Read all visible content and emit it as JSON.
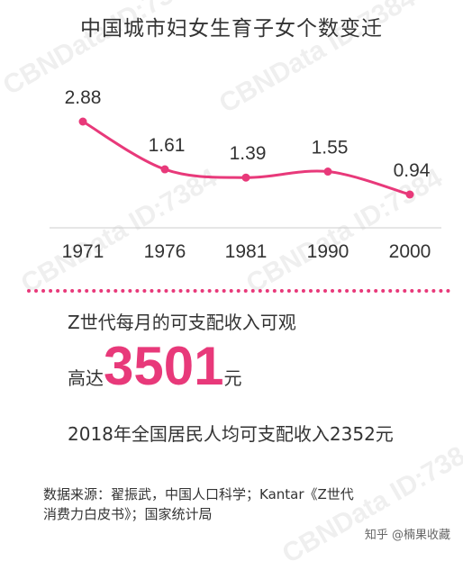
{
  "title": "中国城市妇女生育子女个数变迁",
  "chart_data": {
    "type": "line",
    "title": "中国城市妇女生育子女个数变迁",
    "categories": [
      "1971",
      "1976",
      "1981",
      "1990",
      "2000"
    ],
    "values": [
      2.88,
      1.61,
      1.39,
      1.55,
      0.94
    ],
    "value_labels": [
      "2.88",
      "1.61",
      "1.39",
      "1.55",
      "0.94"
    ],
    "color": "#e8397a",
    "grid": false
  },
  "stats": {
    "line1": "Z世代每月的可支配收入可观",
    "prefix": "高达",
    "big_number": "3501",
    "suffix": "元",
    "line3": "2018年全国居民人均可支配收入2352元"
  },
  "source": {
    "line1": "数据来源：翟振武，中国人口科学；Kantar《Z世代",
    "line2": "消费力白皮书》；国家统计局"
  },
  "footer": "知乎 @楠果收藏",
  "watermark": "CBNData ID:7384",
  "accent_color": "#e8397a"
}
